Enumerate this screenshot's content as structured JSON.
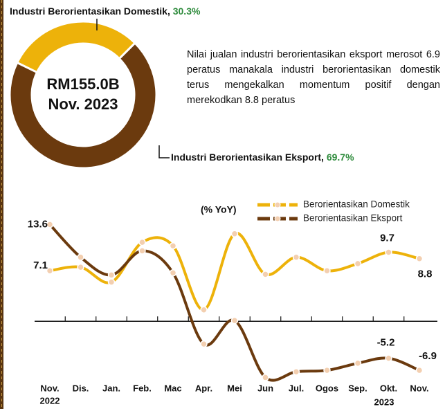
{
  "chart_data": [
    {
      "type": "donut",
      "categories": [
        "Industri Berorientasikan Domestik,",
        "Industri Berorientasikan Eksport,"
      ],
      "values": [
        30.3,
        69.7
      ],
      "value_labels": [
        "30.3%",
        "69.7%"
      ],
      "colors": [
        "#edb20a",
        "#6b3a0e"
      ],
      "label_color": "#2e8b3c",
      "center_text": [
        "RM155.0B",
        "Nov. 2023"
      ],
      "annotation": "Nilai jualan industri berorientasikan eksport merosot 6.9 peratus manakala industri berorientasikan domestik terus mengekalkan momentum positif dengan merekodkan 8.8 peratus"
    },
    {
      "type": "line",
      "y_label": "(% YoY)",
      "categories": [
        "Nov.",
        "Dis.",
        "Jan.",
        "Feb.",
        "Mac",
        "Apr.",
        "Mei",
        "Jun",
        "Jul.",
        "Ogos",
        "Sep.",
        "Okt.",
        "Nov."
      ],
      "year_labels": [
        "2022",
        "2023"
      ],
      "ylim": [
        -10,
        15
      ],
      "series": [
        {
          "name": "Berorientasikan Domestik",
          "color": "#edb20a",
          "values": [
            7.1,
            7.6,
            5.5,
            11.1,
            10.6,
            1.6,
            12.3,
            6.6,
            9.0,
            7.1,
            8.1,
            9.7,
            8.8
          ]
        },
        {
          "name": "Berorientasikan Eksport",
          "color": "#6b3a0e",
          "values": [
            13.6,
            9.0,
            6.5,
            9.9,
            6.8,
            -3.2,
            0.1,
            -7.9,
            -7.1,
            -6.9,
            -5.9,
            -5.2,
            -6.9
          ]
        }
      ]
    }
  ]
}
